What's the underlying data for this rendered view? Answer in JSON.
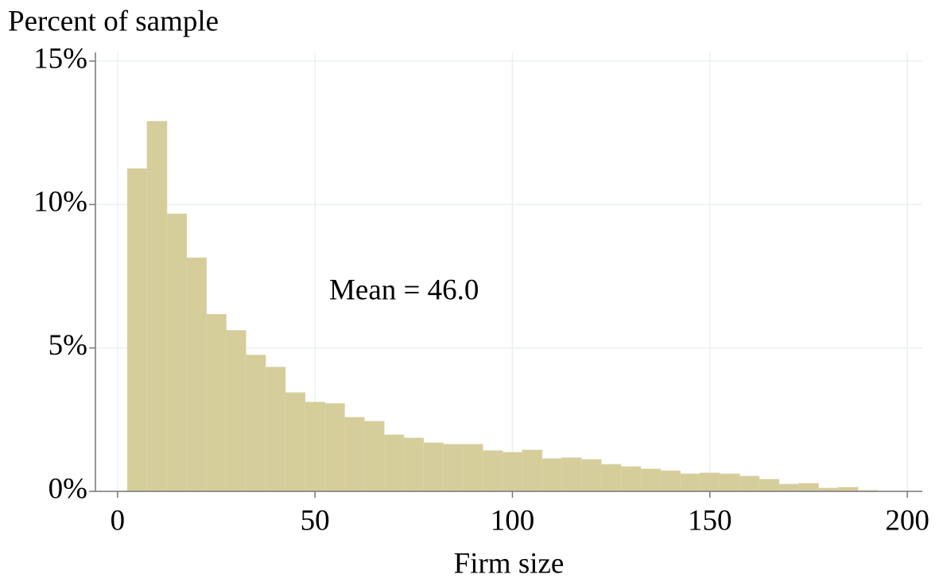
{
  "chart_data": {
    "type": "histogram",
    "ylabel": "Percent of sample",
    "xlabel": "Firm size",
    "annotation": "Mean = 46.0",
    "bins": [
      2.5,
      7.5,
      12.5,
      17.5,
      22.5,
      27.5,
      32.5,
      37.5,
      42.5,
      47.5,
      52.5,
      57.5,
      62.5,
      67.5,
      72.5,
      77.5,
      82.5,
      87.5,
      92.5,
      97.5,
      102.5,
      107.5,
      112.5,
      117.5,
      122.5,
      127.5,
      132.5,
      137.5,
      142.5,
      147.5,
      152.5,
      157.5,
      162.5,
      167.5,
      172.5,
      177.5,
      182.5,
      187.5,
      192.5
    ],
    "values": [
      11.25,
      12.9,
      9.67,
      8.14,
      6.17,
      5.61,
      4.75,
      4.33,
      3.44,
      3.11,
      3.06,
      2.58,
      2.44,
      1.97,
      1.86,
      1.69,
      1.64,
      1.64,
      1.42,
      1.36,
      1.44,
      1.14,
      1.17,
      1.11,
      0.94,
      0.86,
      0.78,
      0.72,
      0.61,
      0.64,
      0.61,
      0.53,
      0.42,
      0.25,
      0.28,
      0.11,
      0.14,
      0.03
    ],
    "color": "#d5cd9a",
    "xlim": [
      -5.6,
      203.8
    ],
    "ylim": [
      0,
      15.3
    ],
    "xticks": [
      0,
      50,
      100,
      150,
      200
    ],
    "yticks": [
      {
        "value": 0,
        "label": "0%"
      },
      {
        "value": 5,
        "label": "5%"
      },
      {
        "value": 10,
        "label": "10%"
      },
      {
        "value": 15,
        "label": "15%"
      }
    ],
    "grid": true
  }
}
